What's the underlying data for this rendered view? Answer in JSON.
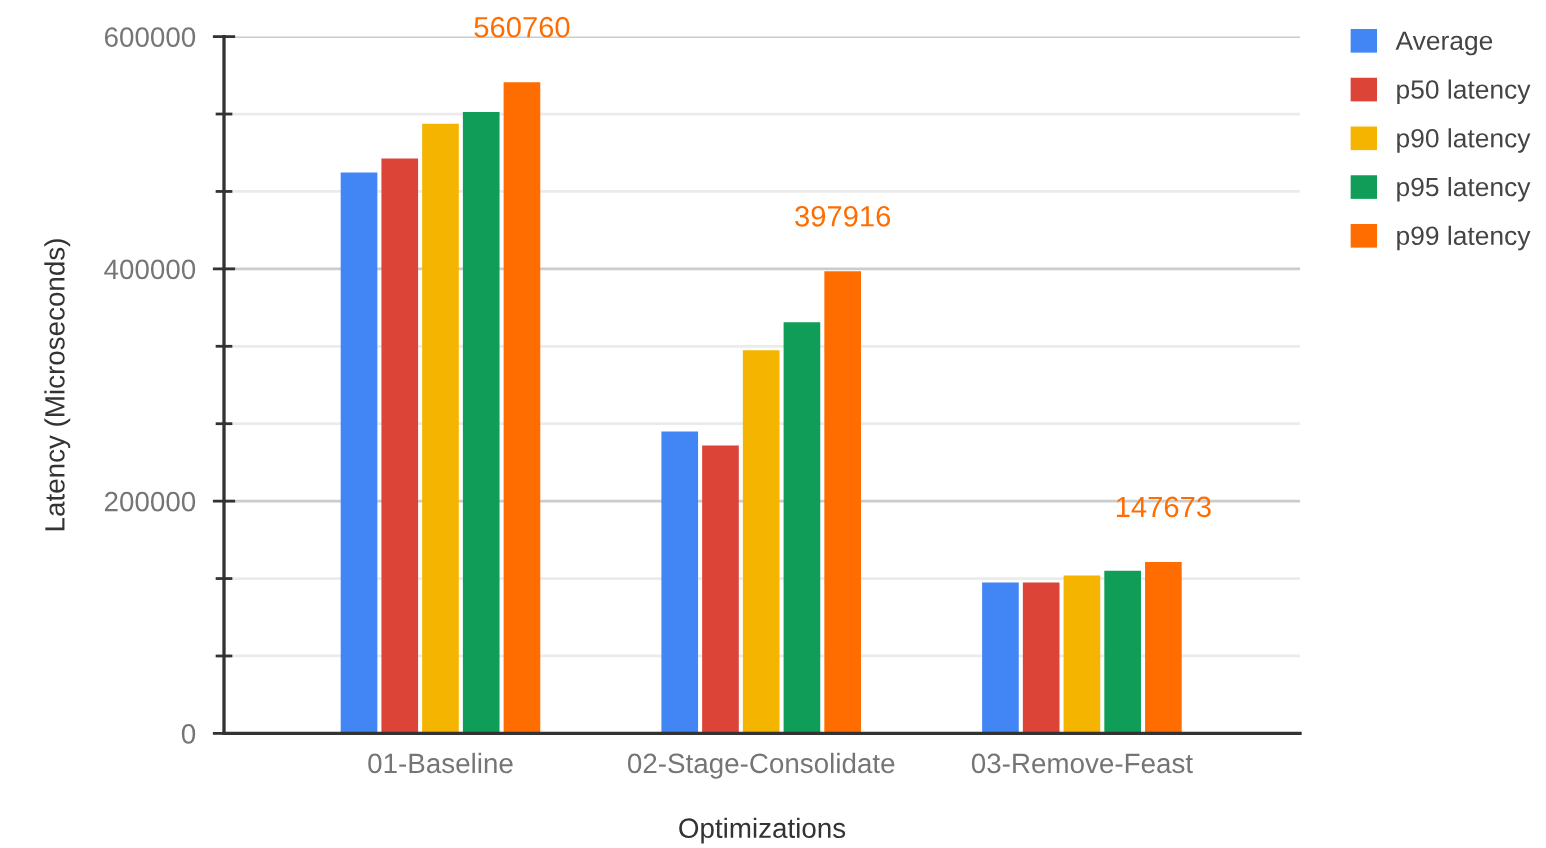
{
  "chart_data": {
    "type": "bar",
    "xlabel": "Optimizations",
    "ylabel": "Latency (Microseconds)",
    "categories": [
      "01-Baseline",
      "02-Stage-Consolidate",
      "03-Remove-Feast"
    ],
    "series": [
      {
        "name": "Average",
        "color": "#4285f4",
        "values": [
          483000,
          260000,
          130000
        ]
      },
      {
        "name": "p50 latency",
        "color": "#db4437",
        "values": [
          495000,
          248000,
          130000
        ]
      },
      {
        "name": "p90 latency",
        "color": "#f4b400",
        "values": [
          525000,
          330000,
          136000
        ]
      },
      {
        "name": "p95 latency",
        "color": "#0f9d58",
        "values": [
          535000,
          354000,
          140000
        ]
      },
      {
        "name": "p99 latency",
        "color": "#ff6d01",
        "values": [
          560760,
          397916,
          147673
        ],
        "value_labels": [
          "560760",
          "397916",
          "147673"
        ]
      }
    ],
    "ylim": [
      0,
      600000
    ],
    "yticks": [
      0,
      {
        "value": 66667,
        "label": null
      },
      {
        "value": 133333,
        "label": null
      },
      200000,
      {
        "value": 266667,
        "label": null
      },
      {
        "value": 333333,
        "label": null
      },
      400000,
      {
        "value": 466667,
        "label": null
      },
      {
        "value": 533333,
        "label": null
      },
      600000
    ],
    "grid": "y",
    "legend": "top right"
  }
}
